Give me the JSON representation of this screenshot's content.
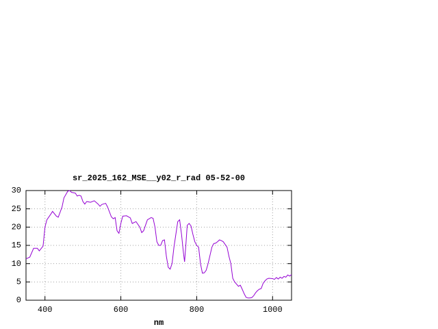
{
  "chart_data": {
    "type": "line",
    "title": "sr_2025_162_MSE__y02_r_rad 05-52-00",
    "x_label": "nm",
    "x": [
      350,
      360,
      370,
      380,
      385,
      395,
      400,
      405,
      415,
      420,
      430,
      435,
      445,
      450,
      460,
      465,
      470,
      480,
      485,
      490,
      495,
      500,
      505,
      510,
      520,
      530,
      540,
      545,
      550,
      560,
      565,
      575,
      580,
      585,
      590,
      595,
      600,
      605,
      615,
      625,
      630,
      640,
      650,
      655,
      660,
      670,
      680,
      685,
      690,
      695,
      700,
      705,
      710,
      715,
      720,
      725,
      730,
      735,
      740,
      745,
      750,
      755,
      760,
      765,
      768,
      772,
      775,
      780,
      785,
      790,
      795,
      800,
      805,
      810,
      815,
      820,
      825,
      830,
      840,
      845,
      850,
      855,
      860,
      865,
      870,
      880,
      885,
      890,
      895,
      900,
      910,
      915,
      920,
      925,
      930,
      935,
      940,
      945,
      950,
      955,
      960,
      965,
      970,
      975,
      980,
      985,
      990,
      1000,
      1005,
      1010,
      1015,
      1020,
      1025,
      1030,
      1035,
      1040,
      1045,
      1050
    ],
    "series": [
      {
        "color": "#9400d3",
        "values": [
          11.3,
          11.8,
          14.2,
          14.2,
          13.5,
          14.8,
          20,
          22,
          23.5,
          24.3,
          23,
          22.7,
          25.5,
          28,
          29.8,
          30,
          29.5,
          29.3,
          28.5,
          28.7,
          28.5,
          27,
          26.3,
          27,
          26.8,
          27.2,
          26.3,
          25.7,
          26.2,
          26.5,
          25.5,
          22.8,
          22.3,
          22.6,
          19,
          18.3,
          21,
          23,
          23.1,
          22.5,
          21,
          21.5,
          20,
          18.5,
          19,
          22,
          22.6,
          22.4,
          20,
          16,
          15,
          15,
          16.3,
          16.5,
          12,
          9,
          8.5,
          10,
          14.5,
          18,
          21.5,
          22,
          18,
          13,
          10.5,
          16,
          20.5,
          21,
          20.3,
          18,
          16,
          15,
          14.5,
          10,
          7.4,
          7.5,
          8.2,
          10,
          14.5,
          15.5,
          15.6,
          16,
          16.5,
          16.3,
          16,
          14.5,
          12,
          10,
          6,
          5,
          3.8,
          4.1,
          3,
          1.8,
          0.8,
          0.6,
          0.6,
          0.7,
          1.2,
          2,
          2.6,
          3,
          3.2,
          4.6,
          5.3,
          5.8,
          6,
          5.9,
          5.7,
          6.2,
          5.8,
          6.3,
          6,
          6.5,
          6.3,
          6.9,
          6.6,
          7
        ]
      }
    ],
    "xlim": [
      350,
      1050
    ],
    "xticks": [
      400,
      600,
      800,
      1000
    ],
    "ylim": [
      0,
      30
    ],
    "yticks": [
      0,
      5,
      10,
      15,
      20,
      25,
      30
    ],
    "grid": true
  }
}
